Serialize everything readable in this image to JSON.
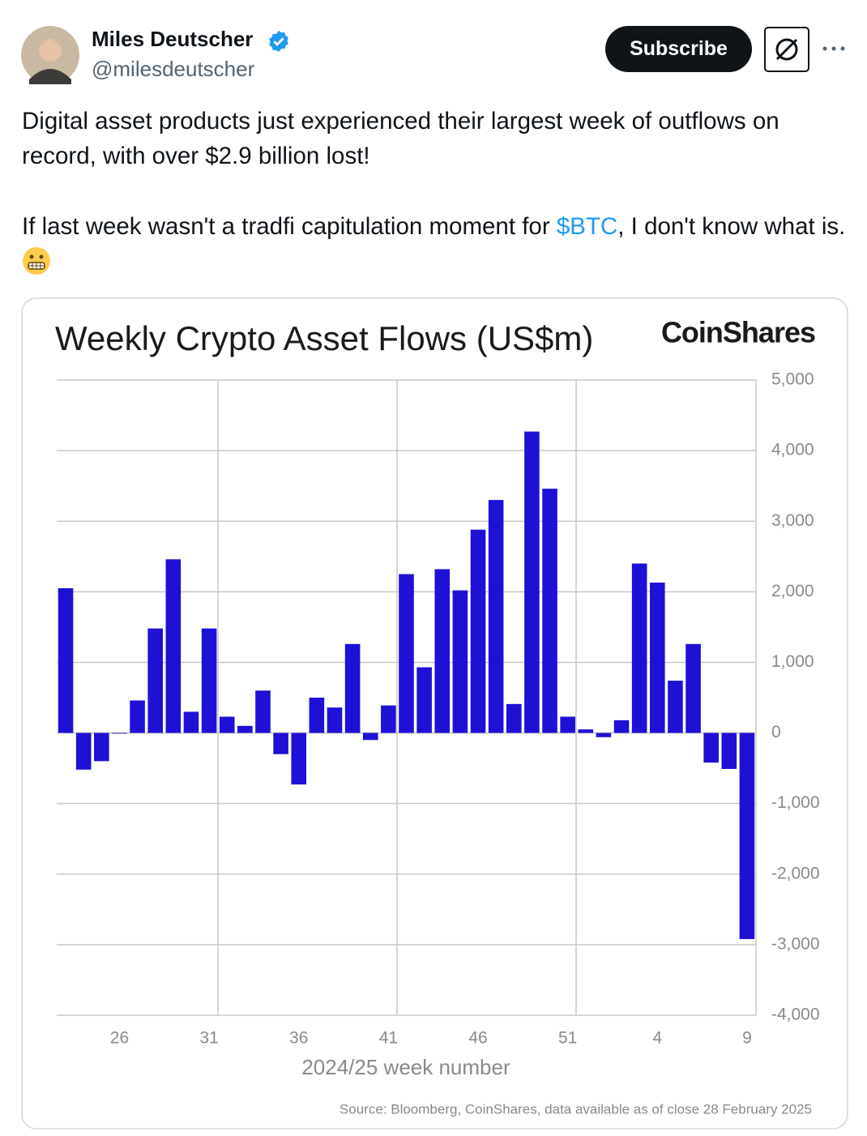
{
  "tweet": {
    "author": {
      "name": "Miles Deutscher",
      "handle": "@milesdeutscher"
    },
    "subscribe": "Subscribe",
    "text": {
      "paragraph1": "Digital asset products just experienced their largest week of outflows on record, with over $2.9 billion lost!",
      "paragraph2_start": "If last week wasn't a tradfi capitulation moment for ",
      "paragraph2_link": "$BTC",
      "paragraph2_end": ", I don't know what is."
    }
  },
  "chart_data": {
    "type": "bar",
    "title": "Weekly Crypto Asset Flows (US$m)",
    "brand": "CoinShares",
    "x_label": "2024/25 week number",
    "source": "Source: Bloomberg, CoinShares, data available as of close 28 February 2025",
    "color": "#1f10d6",
    "categories": [
      null,
      null,
      null,
      "26",
      null,
      null,
      null,
      null,
      "31",
      null,
      null,
      null,
      null,
      "36",
      null,
      null,
      null,
      null,
      "41",
      null,
      null,
      null,
      null,
      "46",
      null,
      null,
      null,
      null,
      "51",
      null,
      null,
      null,
      null,
      "4",
      null,
      null,
      null,
      null,
      "9"
    ],
    "values": [
      2050,
      -520,
      -400,
      -10,
      460,
      1480,
      2460,
      300,
      1480,
      230,
      100,
      600,
      -300,
      -730,
      500,
      360,
      1260,
      -100,
      390,
      2250,
      930,
      2320,
      2020,
      2880,
      3300,
      410,
      4270,
      3460,
      230,
      50,
      -60,
      180,
      2400,
      2130,
      740,
      1260,
      -420,
      -510,
      -2920
    ],
    "ylim": [
      -4000,
      5000
    ],
    "yticks": [
      {
        "value": -4000,
        "label": "-4,000"
      },
      {
        "value": -3000,
        "label": "-3,000"
      },
      {
        "value": -2000,
        "label": "-2,000"
      },
      {
        "value": -1000,
        "label": "-1,000"
      },
      0,
      {
        "value": 1000,
        "label": "1,000"
      },
      {
        "value": 2000,
        "label": "2,000"
      },
      {
        "value": 3000,
        "label": "3,000"
      },
      {
        "value": 4000,
        "label": "4,000"
      },
      {
        "value": 5000,
        "label": "5,000"
      }
    ],
    "grid": true
  }
}
